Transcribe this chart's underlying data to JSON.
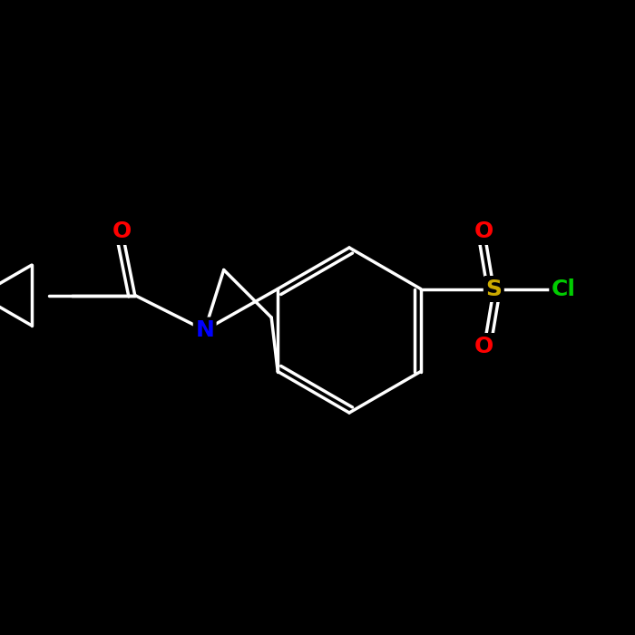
{
  "background_color": "#000000",
  "bond_color": "#ffffff",
  "bond_width": 2.5,
  "atom_colors": {
    "N": "#0000ff",
    "O": "#ff0000",
    "S": "#ccaa00",
    "Cl": "#00cc00",
    "C": "#ffffff"
  },
  "font_size_atoms": 16,
  "font_size_labels": 14
}
